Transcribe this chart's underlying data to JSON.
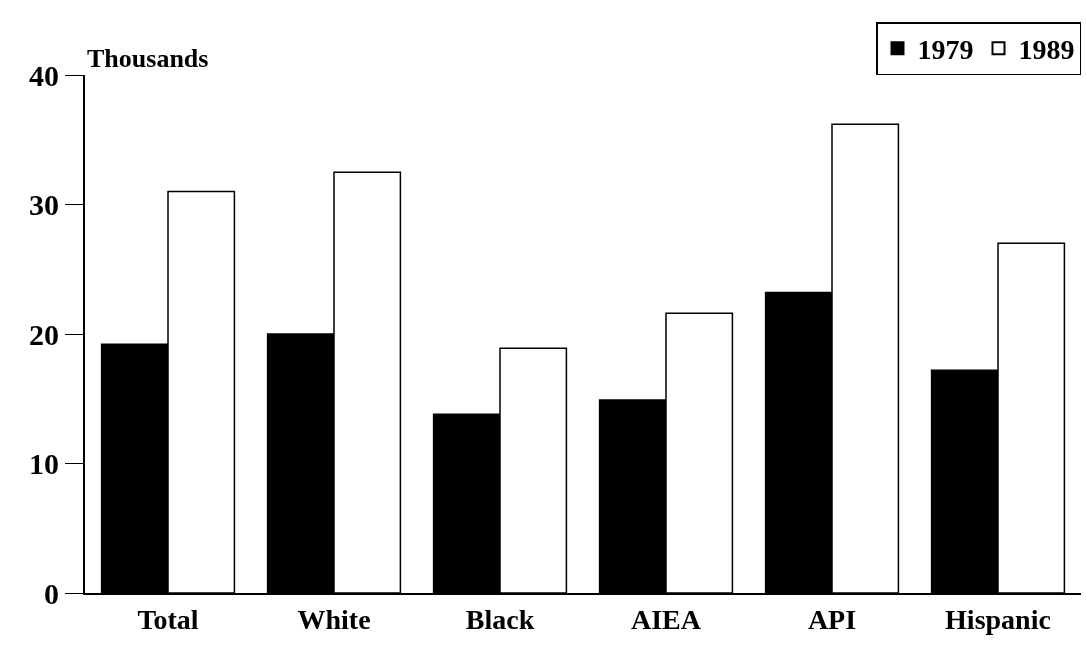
{
  "chart_data": {
    "type": "bar",
    "ylabel": "Thousands",
    "categories": [
      "Total",
      "White",
      "Black",
      "AIEA",
      "API",
      "Hispanic"
    ],
    "series": [
      {
        "name": "1979",
        "color": "#000000",
        "values": [
          19.2,
          20.0,
          13.8,
          14.9,
          23.2,
          17.2
        ]
      },
      {
        "name": "1989",
        "color": "#ffffff",
        "values": [
          31.0,
          32.5,
          18.9,
          21.6,
          36.2,
          27.0
        ]
      }
    ],
    "ylim": [
      0,
      40
    ],
    "yticks": [
      0,
      10,
      20,
      30,
      40
    ],
    "legend": "top right"
  }
}
